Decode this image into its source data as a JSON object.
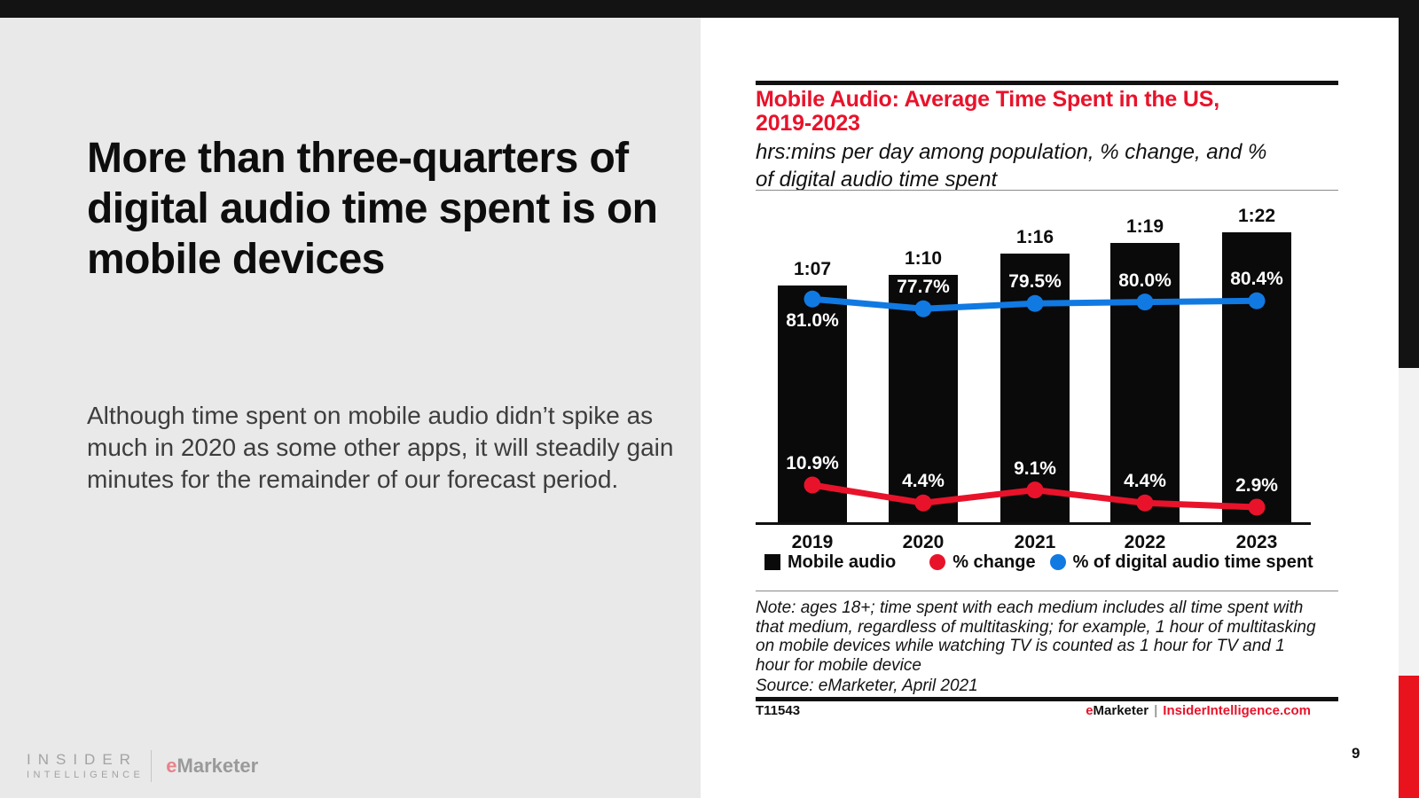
{
  "page": {
    "number": "9"
  },
  "left_panel": {
    "headline": "More than three-quarters of digital audio time spent is on mobile devices",
    "body": "Although time spent on mobile audio didn’t spike as much in 2020 as some other apps, it will steadily gain minutes for the remainder of our forecast period.",
    "logo": {
      "line1": "INSIDER",
      "line2": "INTELLIGENCE",
      "emarketer_e": "e",
      "emarketer_rest": "Marketer"
    }
  },
  "chart": {
    "title_line1": "Mobile Audio: Average Time Spent in the US,",
    "title_line2": "2019-2023",
    "subtitle": "hrs:mins per day among population, % change, and % of digital audio time spent",
    "note": "Note: ages 18+; time spent with each medium includes all time spent with that medium, regardless of multitasking; for example, 1 hour of multitasking on mobile devices while watching TV is counted as 1 hour for TV and 1 hour for mobile device",
    "source": "Source: eMarketer, April 2021",
    "chart_id": "T11543",
    "brand": {
      "e": "e",
      "rest": "Marketer",
      "sep": "|",
      "site": "InsiderIntelligence.com"
    }
  },
  "chart_data": {
    "type": "bar",
    "title": "Mobile Audio: Average Time Spent in the US, 2019-2023",
    "subtitle": "hrs:mins per day among population, % change, and % of digital audio time spent",
    "categories": [
      "2019",
      "2020",
      "2021",
      "2022",
      "2023"
    ],
    "series": [
      {
        "name": "Mobile audio",
        "type": "bar",
        "unit": "hrs:mins per day",
        "labels": [
          "1:07",
          "1:10",
          "1:16",
          "1:19",
          "1:22"
        ],
        "values_minutes": [
          67,
          70,
          76,
          79,
          82
        ],
        "color": "#0a0a0a"
      },
      {
        "name": "% change",
        "type": "line",
        "labels": [
          "10.9%",
          "4.4%",
          "9.1%",
          "4.4%",
          "2.9%"
        ],
        "values": [
          10.9,
          4.4,
          9.1,
          4.4,
          2.9
        ],
        "color": "#e8132b"
      },
      {
        "name": "% of digital audio time spent",
        "type": "line",
        "labels": [
          "81.0%",
          "77.7%",
          "79.5%",
          "80.0%",
          "80.4%"
        ],
        "values": [
          81.0,
          77.7,
          79.5,
          80.0,
          80.4
        ],
        "color": "#1179e2"
      }
    ],
    "legend_position": "bottom",
    "grid": false,
    "xlabel": "",
    "ylabel": ""
  },
  "colors": {
    "accent_red": "#e8132b",
    "line_blue": "#1179e2",
    "bar_black": "#0a0a0a",
    "top_bar": "#131313",
    "left_panel_bg": "#e9e9e9",
    "right_strip_gray": "#f2f2f2",
    "right_strip_red": "#e8131d"
  }
}
